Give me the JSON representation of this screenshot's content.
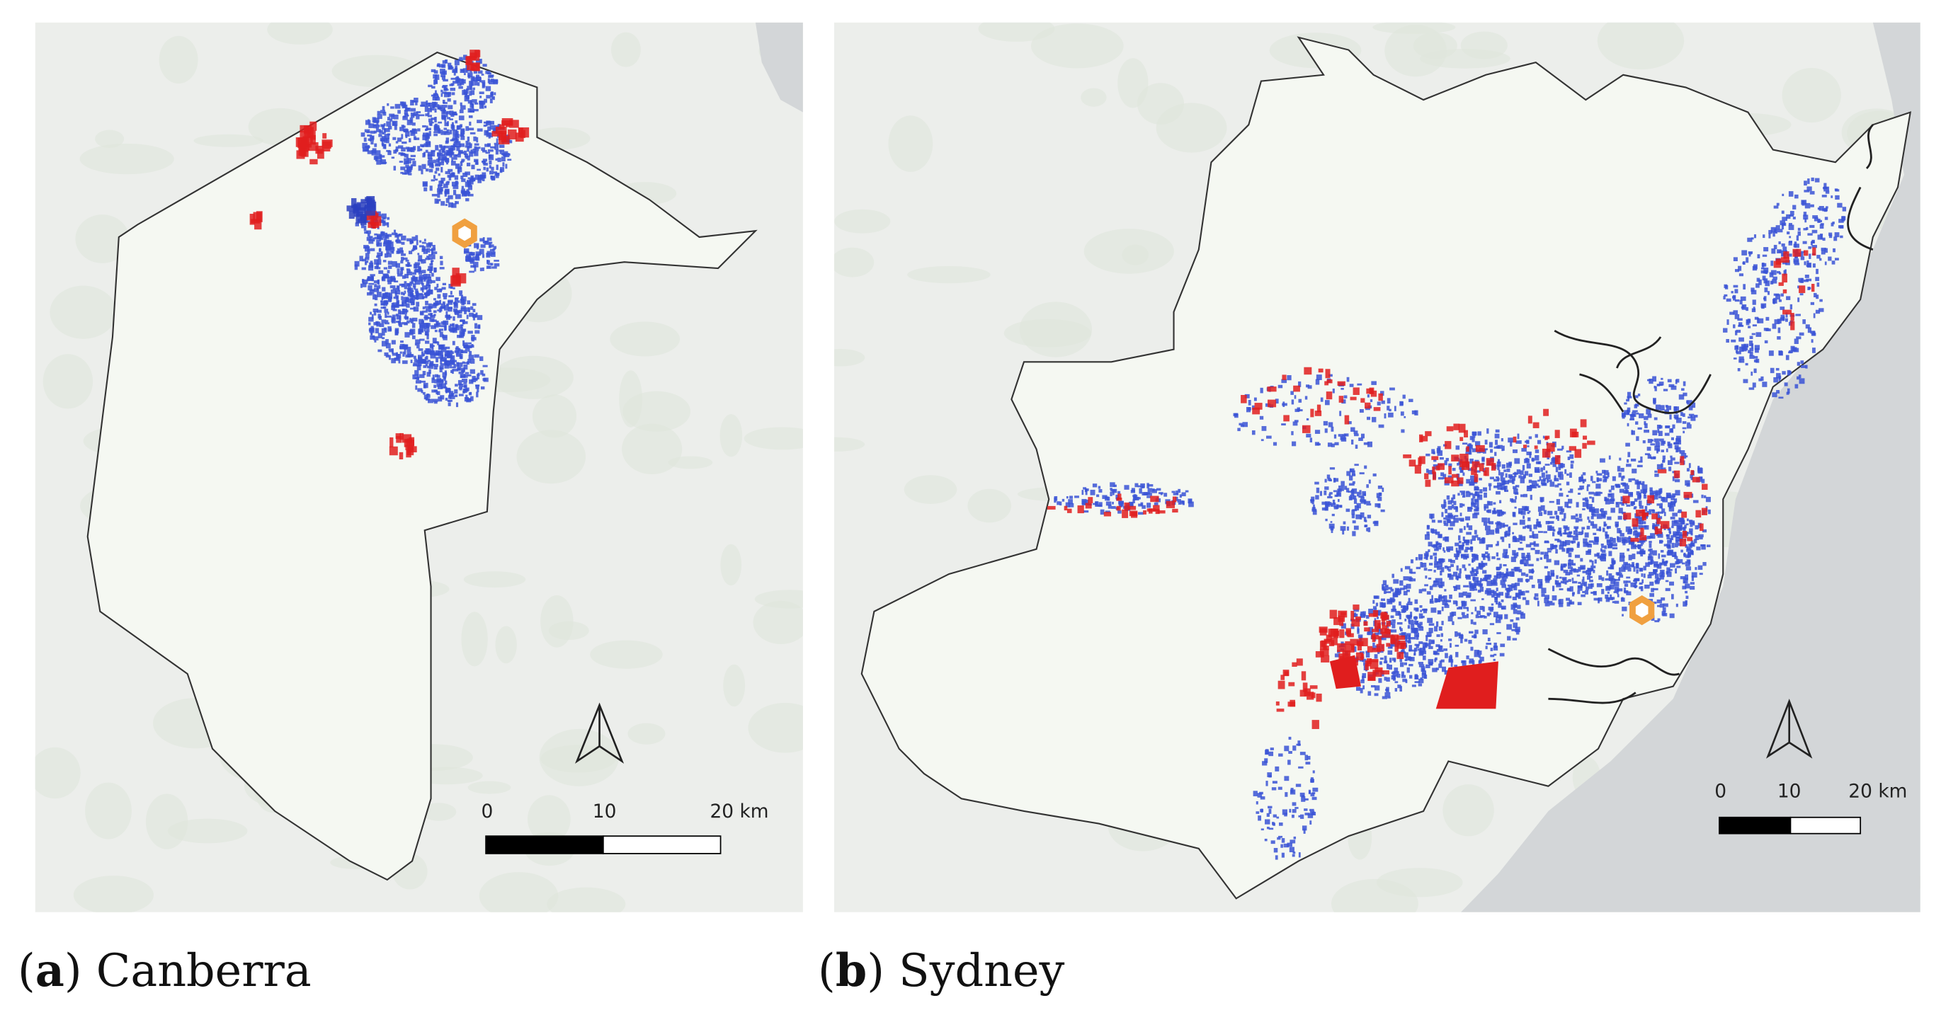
{
  "panels": [
    {
      "caption": {
        "parts": [
          "(",
          "a",
          ")",
          "Canberra"
        ]
      },
      "scale_bar": {
        "labels": [
          "0",
          "10",
          "20 km"
        ]
      }
    },
    {
      "caption": {
        "parts": [
          "(",
          "b",
          ")",
          "Sydney"
        ]
      },
      "scale_bar": {
        "labels": [
          "0",
          "10",
          "20 km"
        ]
      }
    }
  ]
}
